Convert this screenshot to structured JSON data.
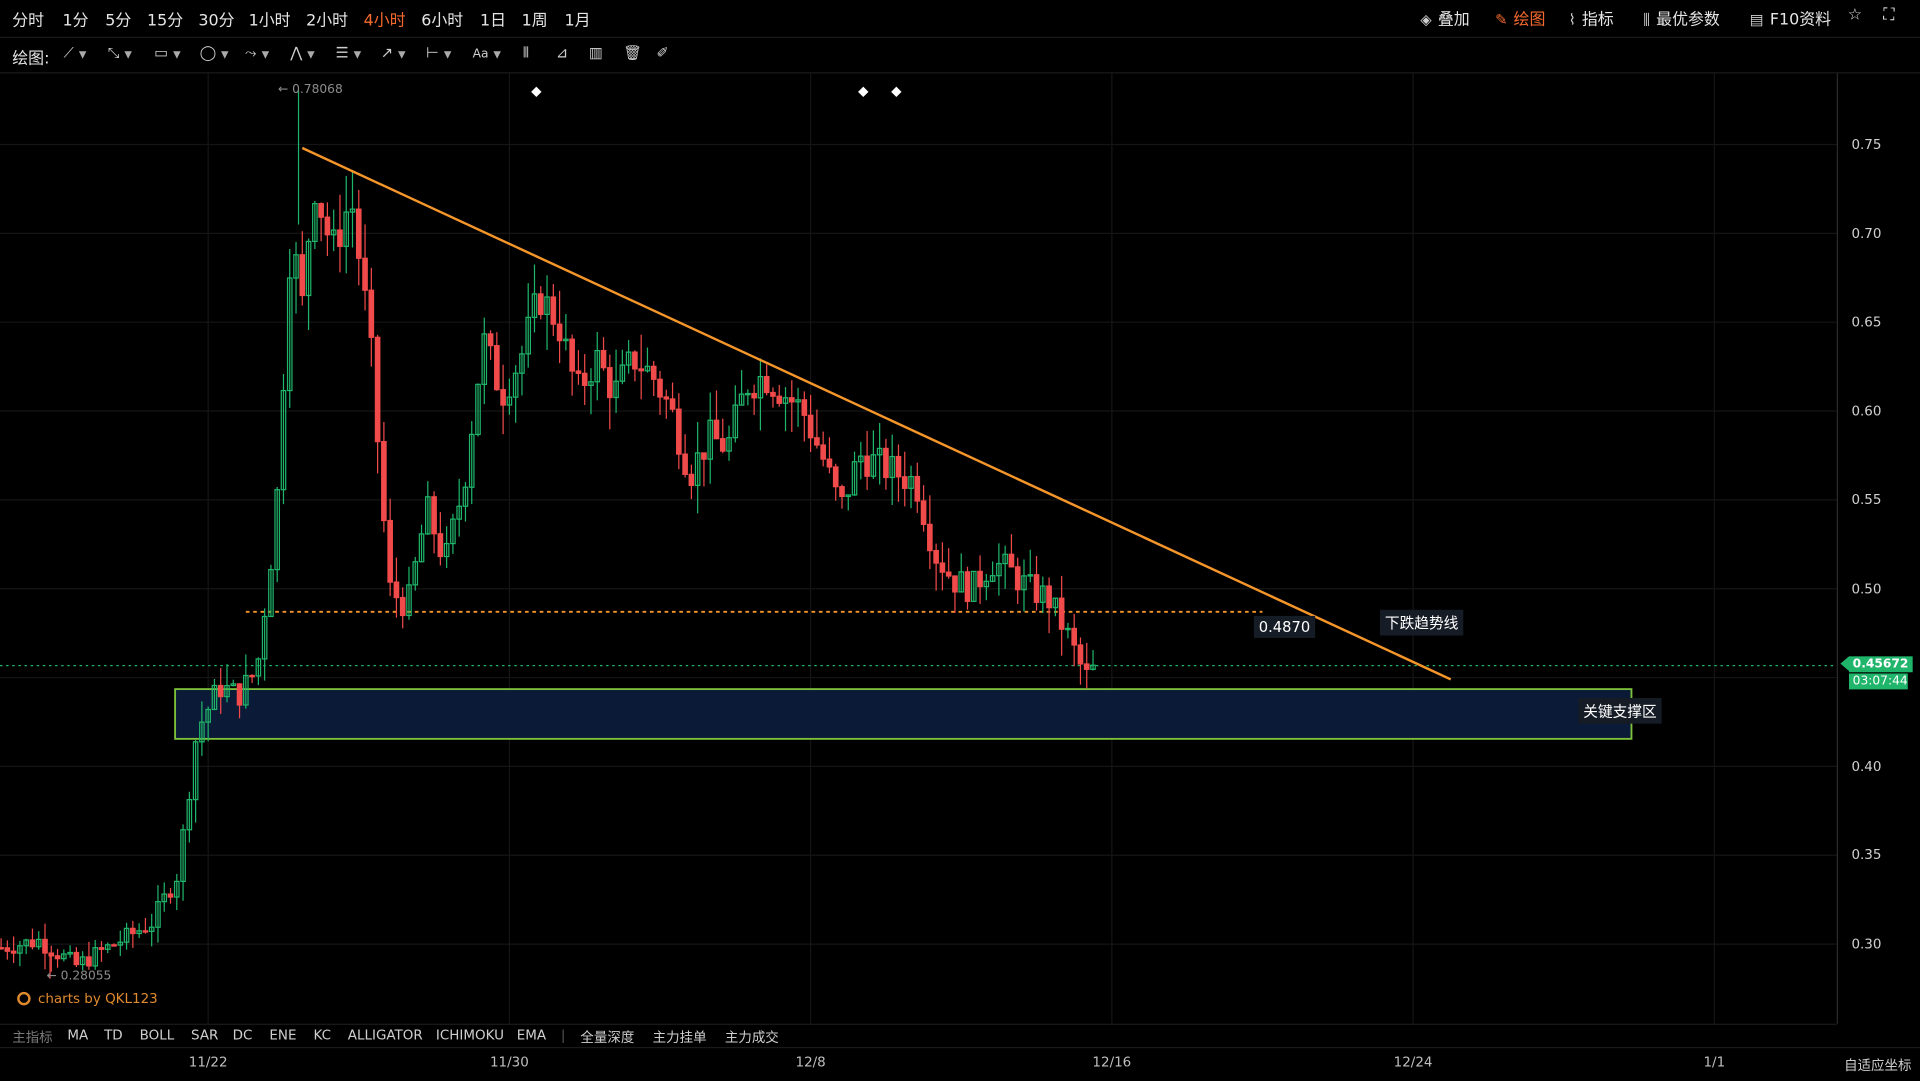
{
  "timeframes": [
    {
      "label": "分时",
      "active": false
    },
    {
      "label": "1分",
      "active": false
    },
    {
      "label": "5分",
      "active": false
    },
    {
      "label": "15分",
      "active": false
    },
    {
      "label": "30分",
      "active": false
    },
    {
      "label": "1小时",
      "active": false
    },
    {
      "label": "2小时",
      "active": false
    },
    {
      "label": "4小时",
      "active": true
    },
    {
      "label": "6小时",
      "active": false
    },
    {
      "label": "1日",
      "active": false
    },
    {
      "label": "1周",
      "active": false
    },
    {
      "label": "1月",
      "active": false
    }
  ],
  "right_tools": [
    {
      "label": "叠加",
      "icon": "layers-icon",
      "active": false
    },
    {
      "label": "绘图",
      "icon": "pencil-icon",
      "active": true
    },
    {
      "label": "指标",
      "icon": "line-chart-icon",
      "active": false
    },
    {
      "label": "最优参数",
      "icon": "sliders-icon",
      "active": false
    },
    {
      "label": "F10资料",
      "icon": "document-icon",
      "active": false
    }
  ],
  "draw_bar": {
    "label": "绘图:",
    "tools": [
      {
        "name": "trend-line-tool",
        "icon": "line-icon"
      },
      {
        "name": "ray-tool",
        "icon": "ray-icon"
      },
      {
        "name": "rectangle-tool",
        "icon": "rectangle-icon"
      },
      {
        "name": "ellipse-tool",
        "icon": "ellipse-icon"
      },
      {
        "name": "path-tool",
        "icon": "path-icon"
      },
      {
        "name": "pattern-tool",
        "icon": "pattern-icon"
      },
      {
        "name": "fibonacci-tool",
        "icon": "fib-icon"
      },
      {
        "name": "arrow-tool",
        "icon": "arrow-icon"
      },
      {
        "name": "measure-tool",
        "icon": "measure-icon"
      },
      {
        "name": "text-tool",
        "icon": "text-icon",
        "label": "Aa"
      },
      {
        "name": "candles-tool",
        "icon": "candles-icon"
      },
      {
        "name": "projection-tool",
        "icon": "projection-icon"
      },
      {
        "name": "bars-tool",
        "icon": "bars-icon"
      },
      {
        "name": "delete-tool",
        "icon": "trash-icon"
      },
      {
        "name": "brush-tool",
        "icon": "brush-icon"
      }
    ]
  },
  "indicators": [
    "主指标",
    "MA",
    "TD",
    "BOLL",
    "SAR",
    "DC",
    "ENE",
    "KC",
    "ALLIGATOR",
    "ICHIMOKU",
    "EMA"
  ],
  "indicator_extras": [
    "全量深度",
    "主力挂单",
    "主力成交"
  ],
  "autoscale_label": "自适应坐标",
  "brand": "charts by QKL123",
  "price_tag": "0.45672",
  "timer_tag": "03:07:44",
  "annotations": {
    "level_label": "0.4870",
    "trendline_label": "下跌趋势线",
    "support_label": "关键支撑区",
    "high_label": "← 0.78068",
    "low_label": "← 0.28055"
  },
  "colors": {
    "up": "#1fb56a",
    "down": "#f04a4a",
    "trendline": "#f5962a",
    "support_box": "#7cc23a",
    "support_fill": "#0b1a36",
    "level_line": "#f5962a"
  },
  "chart_data": {
    "type": "candlestick",
    "interval": "4小时",
    "xlabel": "",
    "ylabel": "",
    "y_ticks": [
      0.3,
      0.35,
      0.4,
      0.45,
      0.5,
      0.55,
      0.6,
      0.65,
      0.7,
      0.75
    ],
    "y_tick_labels": [
      "0.30",
      "0.35",
      "0.40",
      "",
      "0.50",
      "0.55",
      "0.60",
      "0.65",
      "0.70",
      "0.75"
    ],
    "x_tick_labels": [
      "11/22",
      "11/30",
      "12/8",
      "12/16",
      "12/24",
      "1/1"
    ],
    "x_ticks_day_offset": [
      0,
      8,
      16,
      24,
      32,
      40
    ],
    "ylim": [
      0.265,
      0.755
    ],
    "day_range": [
      -5.5,
      43.2
    ],
    "start_date": "11/17",
    "high": 0.78068,
    "low": 0.28055,
    "last_price": 0.45672,
    "candle_anchors": [
      {
        "day": -5.5,
        "price": 0.298
      },
      {
        "day": -4.5,
        "price": 0.302
      },
      {
        "day": -3.5,
        "price": 0.288
      },
      {
        "day": -2.5,
        "price": 0.3
      },
      {
        "day": -1.5,
        "price": 0.312
      },
      {
        "day": -0.8,
        "price": 0.34
      },
      {
        "day": -0.3,
        "price": 0.42
      },
      {
        "day": 0.3,
        "price": 0.445
      },
      {
        "day": 0.8,
        "price": 0.44
      },
      {
        "day": 1.3,
        "price": 0.455
      },
      {
        "day": 1.8,
        "price": 0.54
      },
      {
        "day": 2.2,
        "price": 0.7
      },
      {
        "day": 2.5,
        "price": 0.66
      },
      {
        "day": 2.8,
        "price": 0.73
      },
      {
        "day": 3.3,
        "price": 0.69
      },
      {
        "day": 3.8,
        "price": 0.72
      },
      {
        "day": 4.3,
        "price": 0.64
      },
      {
        "day": 4.8,
        "price": 0.5
      },
      {
        "day": 5.3,
        "price": 0.49
      },
      {
        "day": 5.8,
        "price": 0.545
      },
      {
        "day": 6.3,
        "price": 0.515
      },
      {
        "day": 6.8,
        "price": 0.56
      },
      {
        "day": 7.3,
        "price": 0.64
      },
      {
        "day": 7.8,
        "price": 0.61
      },
      {
        "day": 8.3,
        "price": 0.63
      },
      {
        "day": 8.8,
        "price": 0.665
      },
      {
        "day": 9.3,
        "price": 0.65
      },
      {
        "day": 9.8,
        "price": 0.61
      },
      {
        "day": 10.3,
        "price": 0.63
      },
      {
        "day": 10.8,
        "price": 0.61
      },
      {
        "day": 11.3,
        "price": 0.63
      },
      {
        "day": 11.8,
        "price": 0.62
      },
      {
        "day": 12.3,
        "price": 0.6
      },
      {
        "day": 12.8,
        "price": 0.565
      },
      {
        "day": 13.3,
        "price": 0.585
      },
      {
        "day": 13.8,
        "price": 0.58
      },
      {
        "day": 14.3,
        "price": 0.615
      },
      {
        "day": 14.8,
        "price": 0.62
      },
      {
        "day": 15.3,
        "price": 0.61
      },
      {
        "day": 15.8,
        "price": 0.6
      },
      {
        "day": 16.3,
        "price": 0.575
      },
      {
        "day": 16.8,
        "price": 0.545
      },
      {
        "day": 17.3,
        "price": 0.575
      },
      {
        "day": 17.8,
        "price": 0.57
      },
      {
        "day": 18.3,
        "price": 0.565
      },
      {
        "day": 18.8,
        "price": 0.56
      },
      {
        "day": 19.3,
        "price": 0.52
      },
      {
        "day": 19.8,
        "price": 0.505
      },
      {
        "day": 20.3,
        "price": 0.5
      },
      {
        "day": 20.8,
        "price": 0.515
      },
      {
        "day": 21.3,
        "price": 0.51
      },
      {
        "day": 21.8,
        "price": 0.5
      },
      {
        "day": 22.3,
        "price": 0.495
      },
      {
        "day": 22.8,
        "price": 0.475
      },
      {
        "day": 23.3,
        "price": 0.45
      },
      {
        "day": 23.6,
        "price": 0.456
      }
    ],
    "series": [
      {
        "name": "",
        "type": "trendline",
        "points": [
          {
            "day": 2.5,
            "price": 0.748
          },
          {
            "day": 33.0,
            "price": 0.449
          }
        ]
      },
      {
        "name": "",
        "type": "hline",
        "price": 0.487,
        "day_from": 1.0,
        "day_to": 28.0
      },
      {
        "name": "",
        "type": "zone",
        "price_top": 0.4435,
        "price_bottom": 0.4155,
        "day_from": 0.0,
        "day_to": 37.8
      }
    ]
  }
}
